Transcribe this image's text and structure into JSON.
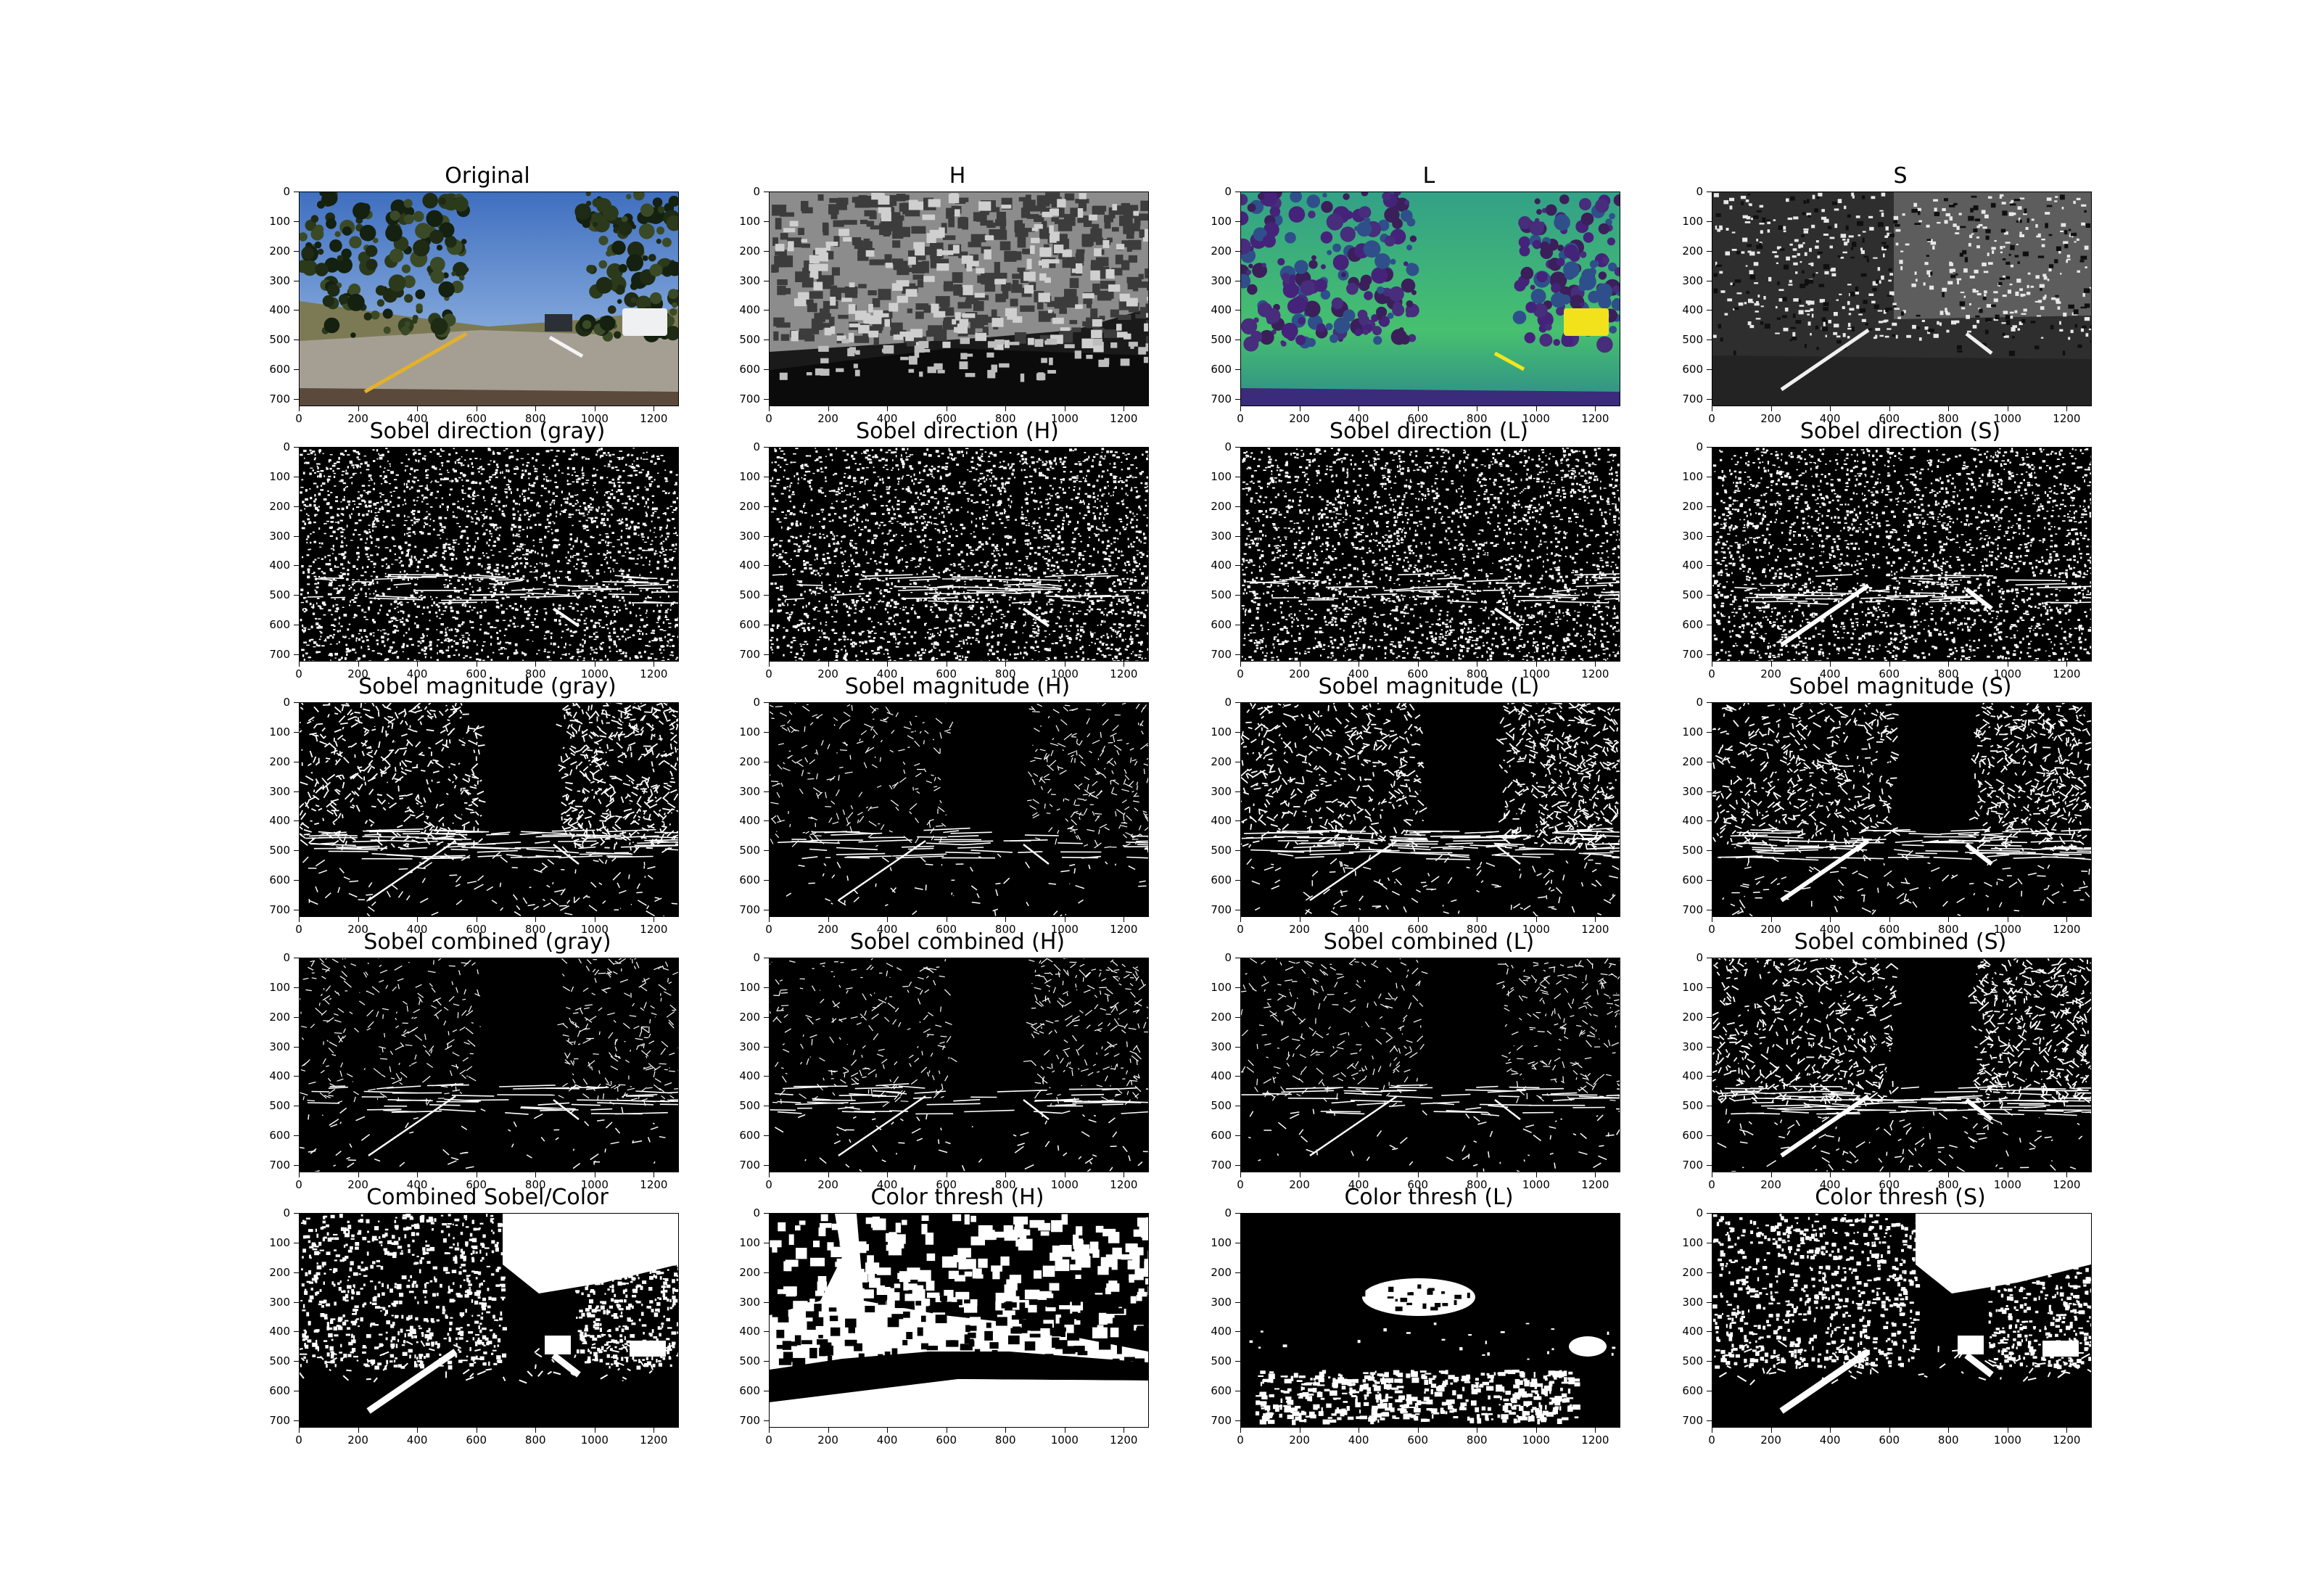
{
  "figure": {
    "rows": 5,
    "cols": 4,
    "panels": [
      {
        "title": "Original",
        "kind": "color-photo"
      },
      {
        "title": "H",
        "kind": "gray-hue"
      },
      {
        "title": "L",
        "kind": "viridis"
      },
      {
        "title": "S",
        "kind": "gray-sat"
      },
      {
        "title": "Sobel direction (gray)",
        "kind": "noise"
      },
      {
        "title": "Sobel direction (H)",
        "kind": "noise"
      },
      {
        "title": "Sobel direction (L)",
        "kind": "noise"
      },
      {
        "title": "Sobel direction (S)",
        "kind": "noise-lane"
      },
      {
        "title": "Sobel magnitude (gray)",
        "kind": "edges"
      },
      {
        "title": "Sobel magnitude (H)",
        "kind": "edges-sparse"
      },
      {
        "title": "Sobel magnitude (L)",
        "kind": "edges"
      },
      {
        "title": "Sobel magnitude (S)",
        "kind": "edges-lane"
      },
      {
        "title": "Sobel combined (gray)",
        "kind": "edges-sparse"
      },
      {
        "title": "Sobel combined (H)",
        "kind": "edges-sparse"
      },
      {
        "title": "Sobel combined (L)",
        "kind": "edges-sparse"
      },
      {
        "title": "Sobel combined (S)",
        "kind": "edges-lane"
      },
      {
        "title": "Combined Sobel/Color",
        "kind": "combined"
      },
      {
        "title": "Color thresh (H)",
        "kind": "thresh-h"
      },
      {
        "title": "Color thresh (L)",
        "kind": "thresh-l"
      },
      {
        "title": "Color thresh (S)",
        "kind": "combined"
      }
    ],
    "x_ticks": [
      "0",
      "200",
      "400",
      "600",
      "800",
      "1000",
      "1200"
    ],
    "y_ticks": [
      "0",
      "100",
      "200",
      "300",
      "400",
      "500",
      "600",
      "700"
    ],
    "x_range": [
      0,
      1280
    ],
    "y_range": [
      0,
      720
    ]
  }
}
